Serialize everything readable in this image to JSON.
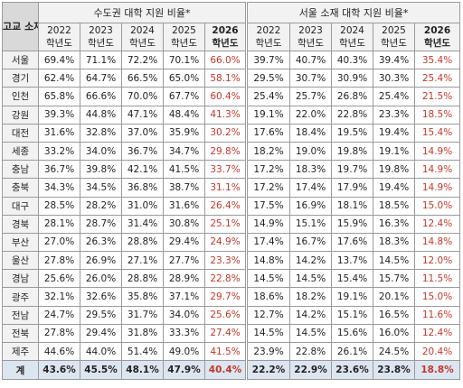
{
  "headers": {
    "region_col": "고교 소재지",
    "group1": "수도권 대학 지원 비율*",
    "group2": "서울 소재 대학 지원 비율*",
    "years": [
      "2022",
      "2023",
      "2024",
      "2025",
      "2026"
    ],
    "year_suffix": "학년도"
  },
  "rows": [
    {
      "region": "서울",
      "g1": [
        "69.4%",
        "71.1%",
        "72.2%",
        "70.1%",
        "66.0%"
      ],
      "g2": [
        "39.7%",
        "40.7%",
        "40.3%",
        "39.4%",
        "35.4%"
      ]
    },
    {
      "region": "경기",
      "g1": [
        "62.4%",
        "64.7%",
        "66.5%",
        "65.0%",
        "58.1%"
      ],
      "g2": [
        "29.5%",
        "30.7%",
        "30.9%",
        "30.3%",
        "25.4%"
      ]
    },
    {
      "region": "인천",
      "g1": [
        "65.8%",
        "66.6%",
        "70.0%",
        "67.7%",
        "60.4%"
      ],
      "g2": [
        "25.4%",
        "25.7%",
        "26.8%",
        "25.4%",
        "21.5%"
      ]
    },
    {
      "region": "강원",
      "g1": [
        "39.3%",
        "44.8%",
        "47.1%",
        "48.4%",
        "41.3%"
      ],
      "g2": [
        "19.1%",
        "22.0%",
        "22.8%",
        "23.3%",
        "18.5%"
      ]
    },
    {
      "region": "대전",
      "g1": [
        "31.6%",
        "32.8%",
        "37.0%",
        "35.9%",
        "30.2%"
      ],
      "g2": [
        "17.6%",
        "18.4%",
        "19.5%",
        "19.4%",
        "15.4%"
      ]
    },
    {
      "region": "세종",
      "g1": [
        "33.2%",
        "34.0%",
        "36.7%",
        "34.7%",
        "29.8%"
      ],
      "g2": [
        "18.2%",
        "19.0%",
        "19.8%",
        "19.1%",
        "14.9%"
      ]
    },
    {
      "region": "충남",
      "g1": [
        "36.7%",
        "39.8%",
        "42.1%",
        "41.5%",
        "33.7%"
      ],
      "g2": [
        "17.2%",
        "18.3%",
        "19.7%",
        "19.8%",
        "14.9%"
      ]
    },
    {
      "region": "충북",
      "g1": [
        "34.3%",
        "34.5%",
        "36.8%",
        "38.7%",
        "31.1%"
      ],
      "g2": [
        "17.2%",
        "17.4%",
        "17.9%",
        "19.4%",
        "14.9%"
      ]
    },
    {
      "region": "대구",
      "g1": [
        "28.5%",
        "28.2%",
        "31.0%",
        "31.6%",
        "26.4%"
      ],
      "g2": [
        "17.5%",
        "16.9%",
        "18.1%",
        "18.5%",
        "15.0%"
      ]
    },
    {
      "region": "경북",
      "g1": [
        "28.1%",
        "28.7%",
        "31.4%",
        "30.8%",
        "25.1%"
      ],
      "g2": [
        "14.9%",
        "15.1%",
        "15.9%",
        "16.3%",
        "12.4%"
      ]
    },
    {
      "region": "부산",
      "g1": [
        "27.0%",
        "26.3%",
        "28.8%",
        "29.4%",
        "24.9%"
      ],
      "g2": [
        "17.4%",
        "16.7%",
        "17.6%",
        "18.3%",
        "14.8%"
      ]
    },
    {
      "region": "울산",
      "g1": [
        "27.8%",
        "26.9%",
        "27.1%",
        "27.7%",
        "23.3%"
      ],
      "g2": [
        "14.8%",
        "14.2%",
        "13.7%",
        "14.5%",
        "12.0%"
      ]
    },
    {
      "region": "경남",
      "g1": [
        "25.6%",
        "26.0%",
        "28.8%",
        "28.9%",
        "22.8%"
      ],
      "g2": [
        "14.5%",
        "14.5%",
        "15.4%",
        "15.7%",
        "11.5%"
      ]
    },
    {
      "region": "광주",
      "g1": [
        "32.1%",
        "32.6%",
        "35.8%",
        "37.1%",
        "29.7%"
      ],
      "g2": [
        "18.6%",
        "18.2%",
        "19.1%",
        "20.1%",
        "15.0%"
      ]
    },
    {
      "region": "전남",
      "g1": [
        "24.7%",
        "29.5%",
        "31.7%",
        "34.0%",
        "25.6%"
      ],
      "g2": [
        "12.7%",
        "14.2%",
        "15.1%",
        "16.5%",
        "11.6%"
      ]
    },
    {
      "region": "전북",
      "g1": [
        "27.8%",
        "29.4%",
        "31.8%",
        "33.3%",
        "27.4%"
      ],
      "g2": [
        "14.5%",
        "14.5%",
        "15.6%",
        "16.0%",
        "12.4%"
      ]
    },
    {
      "region": "제주",
      "g1": [
        "44.6%",
        "44.0%",
        "51.4%",
        "49.0%",
        "41.5%"
      ],
      "g2": [
        "23.9%",
        "22.8%",
        "26.1%",
        "24.5%",
        "20.4%"
      ]
    }
  ],
  "total": {
    "region": "계",
    "g1": [
      "43.6%",
      "45.5%",
      "48.1%",
      "47.9%",
      "40.4%"
    ],
    "g2": [
      "22.2%",
      "22.9%",
      "23.6%",
      "23.8%",
      "18.8%"
    ]
  },
  "colors": {
    "highlight_red": "#c0392b",
    "header_gray": "#f2f2f2",
    "corner_gray": "#d9d9d9",
    "total_blue": "#dce6f1"
  }
}
